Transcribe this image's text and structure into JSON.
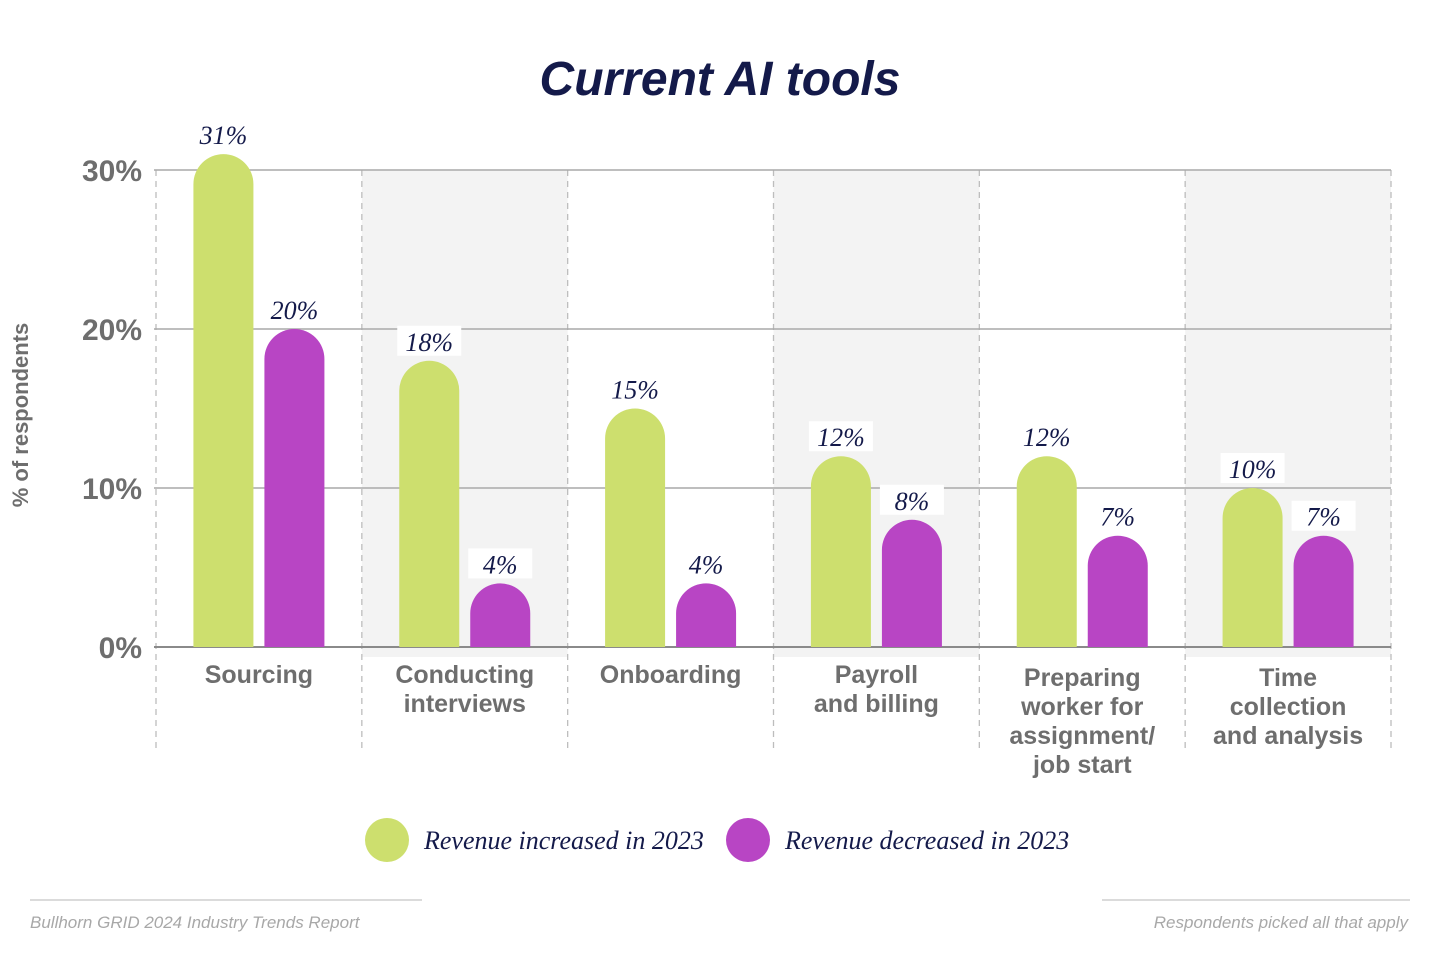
{
  "chart_data": {
    "type": "bar",
    "title": "Current AI tools",
    "ylabel": "% of respondents",
    "ylim": [
      0,
      30
    ],
    "yticks": [
      "0%",
      "10%",
      "20%",
      "30%"
    ],
    "yticks_values": [
      0,
      10,
      20,
      30
    ],
    "grid": true,
    "legend_position": "bottom",
    "categories": [
      [
        "Sourcing"
      ],
      [
        "Conducting",
        "interviews"
      ],
      [
        "Onboarding"
      ],
      [
        "Payroll",
        "and billing"
      ],
      [
        "Preparing",
        "worker for",
        "assignment/",
        "job start"
      ],
      [
        "Time",
        "collection",
        "and analysis"
      ]
    ],
    "series": [
      {
        "name": "Revenue increased in 2023",
        "color": "#cddf6e",
        "values": [
          31,
          18,
          15,
          12,
          12,
          10
        ],
        "labels": [
          "31%",
          "18%",
          "15%",
          "12%",
          "12%",
          "10%"
        ]
      },
      {
        "name": "Revenue decreased in 2023",
        "color": "#b845c4",
        "values": [
          20,
          4,
          4,
          8,
          7,
          7
        ],
        "labels": [
          "20%",
          "4%",
          "4%",
          "8%",
          "7%",
          "7%"
        ]
      }
    ]
  },
  "footer": {
    "source": "Bullhorn GRID 2024 Industry Trends Report",
    "note": "Respondents picked all that apply"
  }
}
